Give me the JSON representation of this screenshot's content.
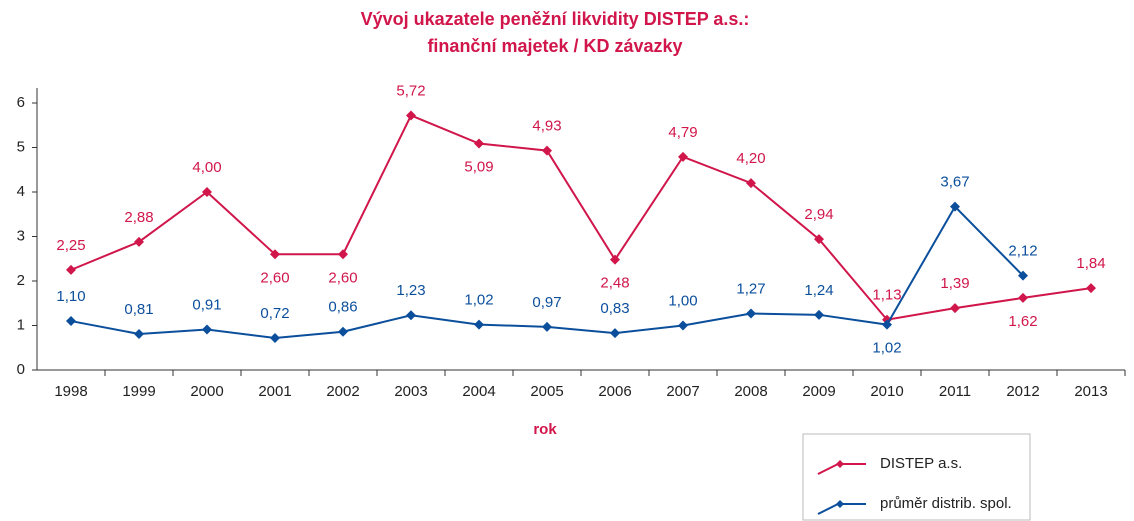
{
  "chart_data": {
    "type": "line",
    "title": [
      "Vývoj ukazatele peněžní likvidity DISTEP a.s.:",
      "finanční majetek / KD závazky"
    ],
    "x_label": "rok",
    "categories": [
      "1998",
      "1999",
      "2000",
      "2001",
      "2002",
      "2003",
      "2004",
      "2005",
      "2006",
      "2007",
      "2008",
      "2009",
      "2010",
      "2011",
      "2012",
      "2013"
    ],
    "series": [
      {
        "name": "DISTEP a.s.",
        "color": "#d0164a",
        "values": [
          2.25,
          2.88,
          4.0,
          2.6,
          2.6,
          5.72,
          5.09,
          4.93,
          2.48,
          4.79,
          4.2,
          2.94,
          1.13,
          1.39,
          1.62,
          1.84
        ],
        "value_labels": [
          "2,25",
          "2,88",
          "4,00",
          "2,60",
          "2,60",
          "5,72",
          "5,09",
          "4,93",
          "2,48",
          "4,79",
          "4,20",
          "2,94",
          "1,13",
          "1,39",
          "1,62",
          "1,84"
        ]
      },
      {
        "name": "průměr distrib. spol.",
        "color": "#0b4f9c",
        "values": [
          1.1,
          0.81,
          0.91,
          0.72,
          0.86,
          1.23,
          1.02,
          0.97,
          0.83,
          1.0,
          1.27,
          1.24,
          1.02,
          3.67,
          2.12,
          null
        ],
        "value_labels": [
          "1,10",
          "0,81",
          "0,91",
          "0,72",
          "0,86",
          "1,23",
          "1,02",
          "0,97",
          "0,83",
          "1,00",
          "1,27",
          "1,24",
          "1,02",
          "3,67",
          "2,12",
          null
        ]
      }
    ],
    "ylim": [
      0,
      6
    ],
    "yticks": [
      0,
      1,
      2,
      3,
      4,
      5,
      6
    ],
    "grid": false,
    "legend": "bottom-right"
  }
}
